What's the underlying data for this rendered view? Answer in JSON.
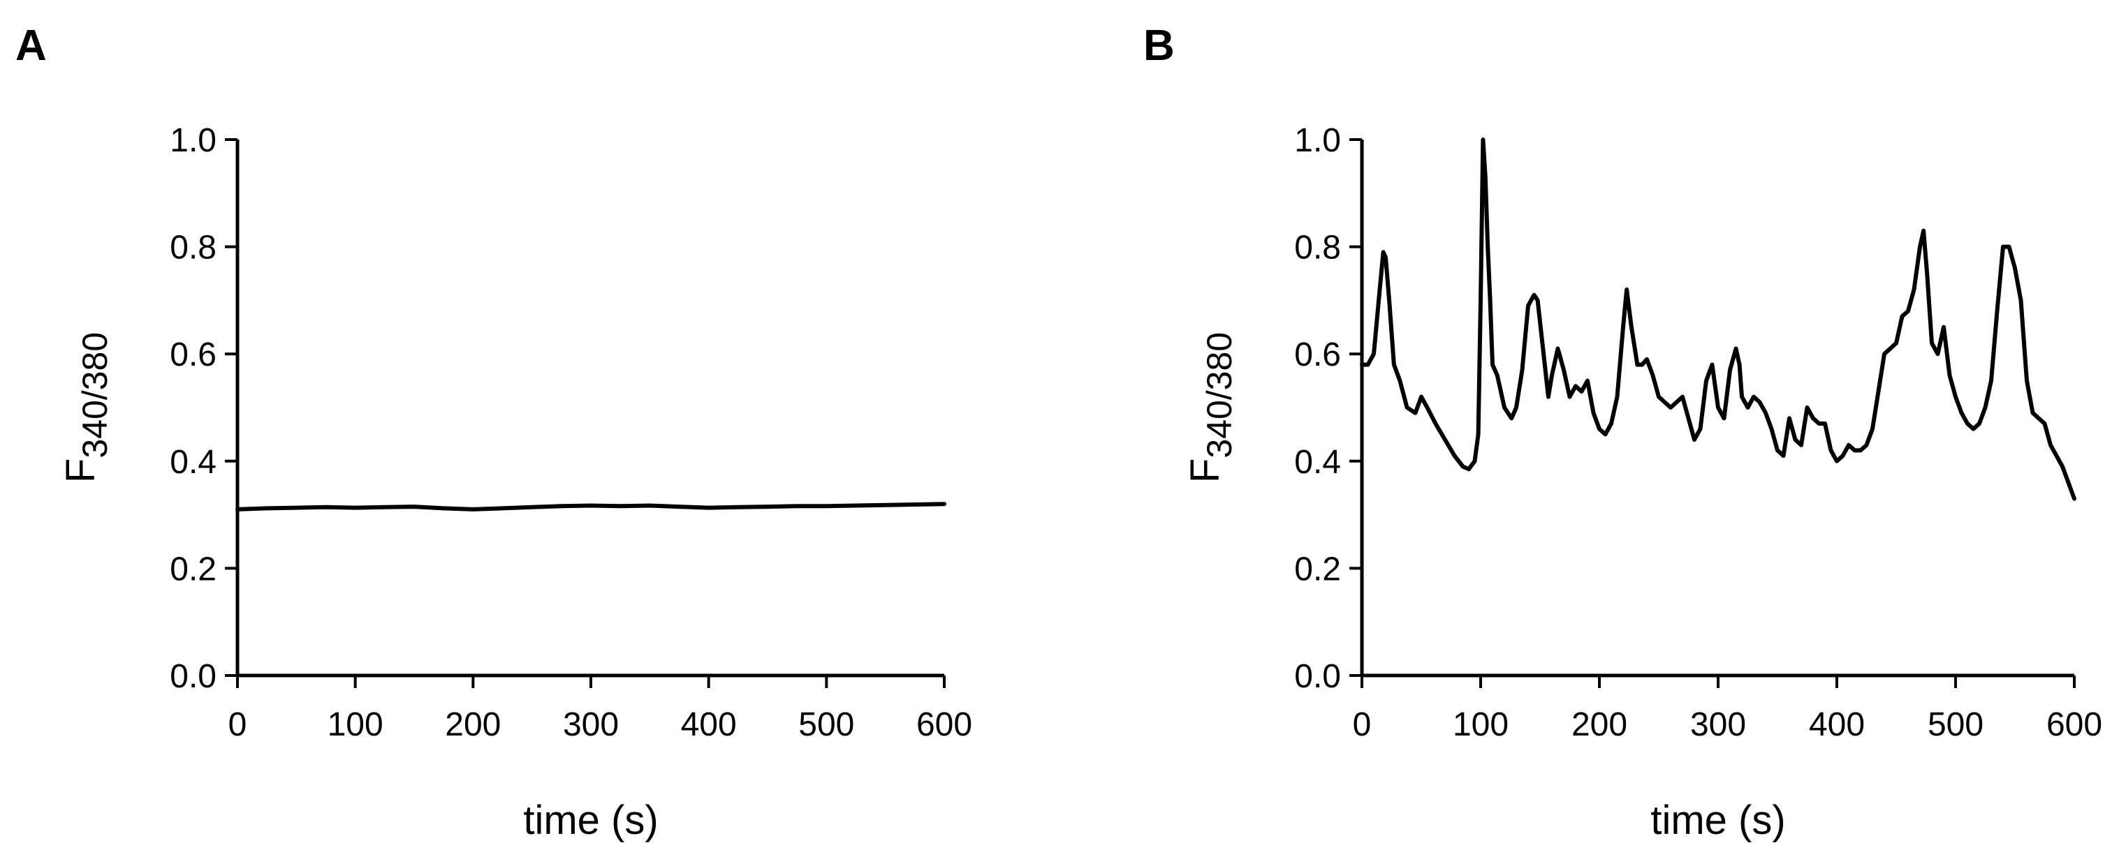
{
  "chart_data": [
    {
      "type": "line",
      "panel_label": "A",
      "xlabel": "time (s)",
      "ylabel_main": "F",
      "ylabel_sub": "340/380",
      "xlim": [
        0,
        600
      ],
      "ylim": [
        0.0,
        1.0
      ],
      "xticks": [
        "0",
        "100",
        "200",
        "300",
        "400",
        "500",
        "600"
      ],
      "yticks": [
        "0.0",
        "0.2",
        "0.4",
        "0.6",
        "0.8",
        "1.0"
      ],
      "grid": false,
      "series": [
        {
          "x": [
            0,
            25,
            50,
            75,
            100,
            125,
            150,
            175,
            200,
            225,
            250,
            275,
            300,
            325,
            350,
            375,
            400,
            425,
            450,
            475,
            500,
            525,
            550,
            575,
            600
          ],
          "y": [
            0.31,
            0.312,
            0.313,
            0.314,
            0.313,
            0.314,
            0.315,
            0.312,
            0.31,
            0.312,
            0.314,
            0.316,
            0.317,
            0.316,
            0.317,
            0.315,
            0.313,
            0.314,
            0.315,
            0.316,
            0.316,
            0.317,
            0.318,
            0.319,
            0.32
          ]
        }
      ]
    },
    {
      "type": "line",
      "panel_label": "B",
      "xlabel": "time (s)",
      "ylabel_main": "F",
      "ylabel_sub": "340/380",
      "xlim": [
        0,
        600
      ],
      "ylim": [
        0.0,
        1.0
      ],
      "xticks": [
        "0",
        "100",
        "200",
        "300",
        "400",
        "500",
        "600"
      ],
      "yticks": [
        "0.0",
        "0.2",
        "0.4",
        "0.6",
        "0.8",
        "1.0"
      ],
      "grid": false,
      "series": [
        {
          "x": [
            0,
            5,
            10,
            15,
            18,
            20,
            23,
            27,
            32,
            38,
            45,
            50,
            55,
            62,
            70,
            78,
            85,
            90,
            95,
            98,
            100,
            102,
            104,
            106,
            108,
            110,
            114,
            120,
            126,
            130,
            135,
            140,
            145,
            148,
            152,
            157,
            160,
            165,
            170,
            175,
            180,
            185,
            190,
            195,
            200,
            205,
            210,
            215,
            220,
            223,
            227,
            232,
            236,
            240,
            245,
            250,
            255,
            260,
            265,
            270,
            275,
            280,
            285,
            290,
            295,
            300,
            305,
            310,
            315,
            318,
            320,
            325,
            330,
            335,
            340,
            345,
            350,
            355,
            360,
            365,
            370,
            375,
            380,
            385,
            390,
            395,
            400,
            405,
            410,
            415,
            420,
            425,
            430,
            435,
            440,
            445,
            450,
            455,
            460,
            465,
            470,
            473,
            476,
            480,
            485,
            490,
            495,
            500,
            505,
            510,
            515,
            520,
            525,
            530,
            535,
            540,
            545,
            550,
            555,
            560,
            565,
            570,
            575,
            580,
            585,
            590,
            595,
            600
          ],
          "y": [
            0.58,
            0.58,
            0.6,
            0.72,
            0.79,
            0.78,
            0.7,
            0.58,
            0.55,
            0.5,
            0.49,
            0.52,
            0.5,
            0.47,
            0.44,
            0.41,
            0.39,
            0.385,
            0.4,
            0.45,
            0.7,
            1.0,
            0.93,
            0.8,
            0.7,
            0.58,
            0.56,
            0.5,
            0.48,
            0.5,
            0.57,
            0.69,
            0.71,
            0.7,
            0.62,
            0.52,
            0.56,
            0.61,
            0.57,
            0.52,
            0.54,
            0.53,
            0.55,
            0.49,
            0.46,
            0.45,
            0.47,
            0.52,
            0.65,
            0.72,
            0.65,
            0.58,
            0.58,
            0.59,
            0.56,
            0.52,
            0.51,
            0.5,
            0.51,
            0.52,
            0.48,
            0.44,
            0.46,
            0.55,
            0.58,
            0.5,
            0.48,
            0.57,
            0.61,
            0.58,
            0.52,
            0.5,
            0.52,
            0.51,
            0.49,
            0.46,
            0.42,
            0.41,
            0.48,
            0.44,
            0.43,
            0.5,
            0.48,
            0.47,
            0.47,
            0.42,
            0.4,
            0.41,
            0.43,
            0.42,
            0.42,
            0.43,
            0.46,
            0.53,
            0.6,
            0.61,
            0.62,
            0.67,
            0.68,
            0.72,
            0.8,
            0.83,
            0.75,
            0.62,
            0.6,
            0.65,
            0.56,
            0.52,
            0.49,
            0.47,
            0.46,
            0.47,
            0.5,
            0.55,
            0.68,
            0.8,
            0.8,
            0.76,
            0.7,
            0.55,
            0.49,
            0.48,
            0.47,
            0.43,
            0.41,
            0.39,
            0.36,
            0.33
          ]
        }
      ]
    }
  ]
}
